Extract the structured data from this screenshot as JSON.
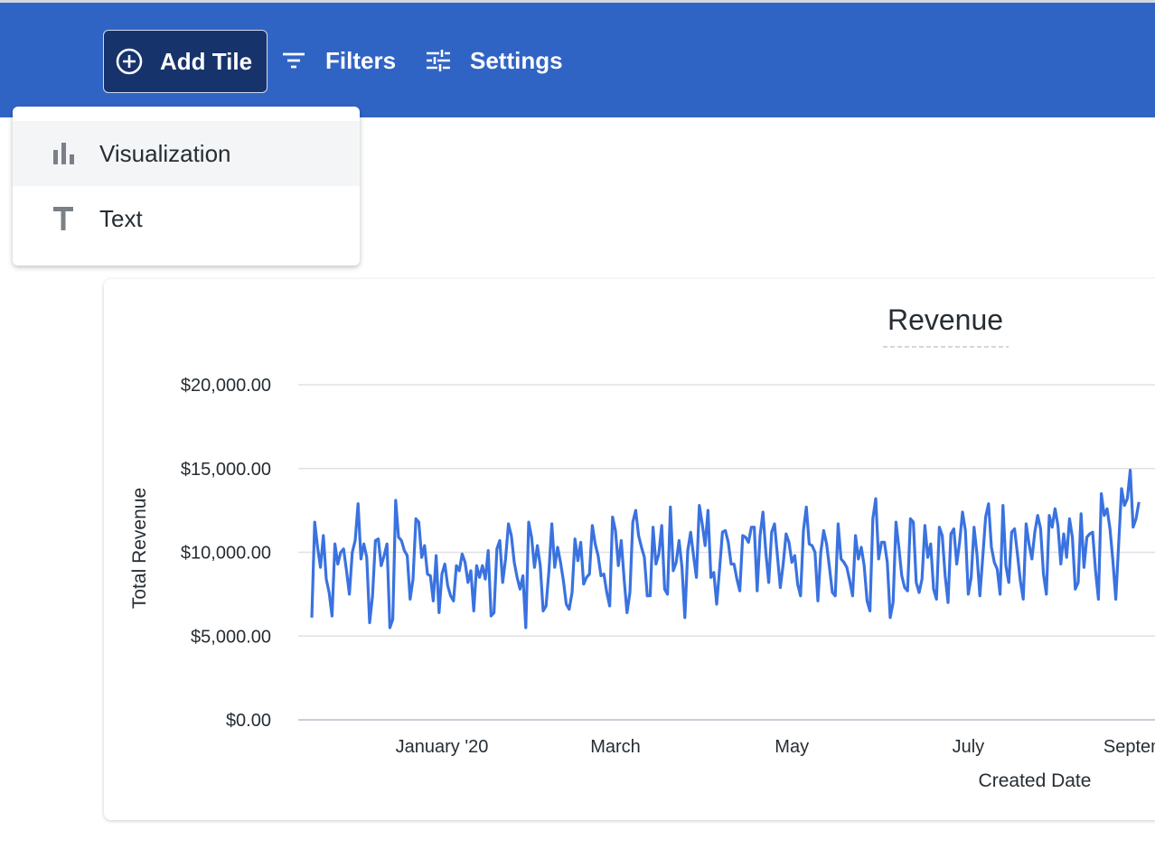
{
  "colors": {
    "brand": "#3064c4",
    "button_dark": "#17336b",
    "series": "#3a72e0",
    "grid": "#dfe2e6"
  },
  "header": {
    "add_tile": {
      "label": "Add Tile",
      "icon": "plus-circle-icon"
    },
    "filters": {
      "label": "Filters",
      "icon": "filter-icon"
    },
    "settings": {
      "label": "Settings",
      "icon": "sliders-icon"
    }
  },
  "menu": {
    "items": [
      {
        "label": "Visualization",
        "icon": "bar-chart-icon",
        "highlighted": true
      },
      {
        "label": "Text",
        "icon": "text-icon",
        "highlighted": false
      }
    ]
  },
  "chart_data": {
    "type": "line",
    "title": "Revenue",
    "xlabel": "Created Date",
    "ylabel": "Total Revenue",
    "x_start": "2019-11-17",
    "x_frequency": "daily",
    "x_ticks": [
      {
        "date": "2020-01-01",
        "label": "January '20"
      },
      {
        "date": "2020-03-01",
        "label": "March"
      },
      {
        "date": "2020-05-01",
        "label": "May"
      },
      {
        "date": "2020-07-01",
        "label": "July"
      },
      {
        "date": "2020-09-01",
        "label": "September"
      }
    ],
    "y_ticks": [
      "$0.00",
      "$5,000.00",
      "$10,000.00",
      "$15,000.00",
      "$20,000.00"
    ],
    "ylim": [
      0,
      20000
    ],
    "grid": true,
    "values": [
      6100,
      11800,
      10300,
      9100,
      11000,
      8400,
      7600,
      6200,
      10500,
      9300,
      10000,
      10200,
      8900,
      7500,
      10000,
      10700,
      12900,
      9600,
      10500,
      9700,
      5800,
      7400,
      10700,
      10800,
      9200,
      9800,
      10500,
      5500,
      6000,
      13100,
      10900,
      10700,
      10100,
      9800,
      7200,
      8400,
      12000,
      11800,
      9700,
      10400,
      8700,
      8600,
      7100,
      9800,
      6400,
      8700,
      9300,
      8000,
      7400,
      7100,
      9200,
      8900,
      9900,
      9400,
      8200,
      8900,
      6500,
      9200,
      8500,
      9200,
      8400,
      10100,
      6200,
      6400,
      10200,
      10700,
      8200,
      9600,
      11700,
      11000,
      9400,
      8500,
      7800,
      8600,
      5500,
      11800,
      10900,
      9100,
      10400,
      9200,
      6500,
      6800,
      8900,
      11700,
      9100,
      10300,
      9400,
      8300,
      6900,
      6600,
      7600,
      10800,
      9500,
      10600,
      8100,
      8500,
      8700,
      11600,
      10500,
      9800,
      8600,
      8700,
      7600,
      6800,
      12100,
      11300,
      9200,
      10700,
      8400,
      6400,
      7600,
      11800,
      12500,
      11000,
      10300,
      9700,
      7400,
      7400,
      11500,
      9300,
      9900,
      11600,
      7800,
      7500,
      12700,
      8900,
      9400,
      10700,
      9100,
      6100,
      10100,
      11200,
      9800,
      8500,
      12800,
      11700,
      10400,
      12500,
      8500,
      8800,
      6900,
      9000,
      11200,
      11300,
      10600,
      9300,
      9300,
      8400,
      7700,
      11000,
      10900,
      10600,
      11500,
      11500,
      7700,
      11000,
      12400,
      10000,
      8200,
      11200,
      11700,
      9800,
      7900,
      9300,
      11100,
      10600,
      9400,
      9800,
      8100,
      7400,
      11300,
      12700,
      10500,
      10400,
      10000,
      7100,
      10000,
      11300,
      10500,
      9100,
      7600,
      7400,
      11700,
      9600,
      9400,
      9100,
      8300,
      7400,
      11000,
      9600,
      10300,
      9200,
      7100,
      6500,
      12000,
      13200,
      9600,
      10600,
      10600,
      9400,
      6100,
      7000,
      11800,
      10300,
      8600,
      7900,
      7700,
      12000,
      11800,
      8200,
      7600,
      8400,
      11600,
      9700,
      10500,
      7800,
      7200,
      11500,
      11000,
      8600,
      7000,
      11100,
      11400,
      9300,
      10600,
      12400,
      11300,
      7500,
      8500,
      11500,
      9900,
      7400,
      9700,
      12100,
      12900,
      10300,
      9400,
      9000,
      7500,
      12800,
      9200,
      8200,
      11200,
      11400,
      9900,
      8300,
      7200,
      11700,
      10500,
      9600,
      11200,
      12200,
      11400,
      8700,
      7500,
      12200,
      11500,
      12600,
      11600,
      9300,
      11100,
      9700,
      12000,
      10900,
      7800,
      8200,
      12300,
      9100,
      10900,
      11100,
      11200,
      8900,
      7200,
      13500,
      12200,
      12600,
      11400,
      9500,
      7200,
      10500,
      13800,
      12800,
      13200,
      14900,
      11500,
      12000,
      13000
    ]
  }
}
